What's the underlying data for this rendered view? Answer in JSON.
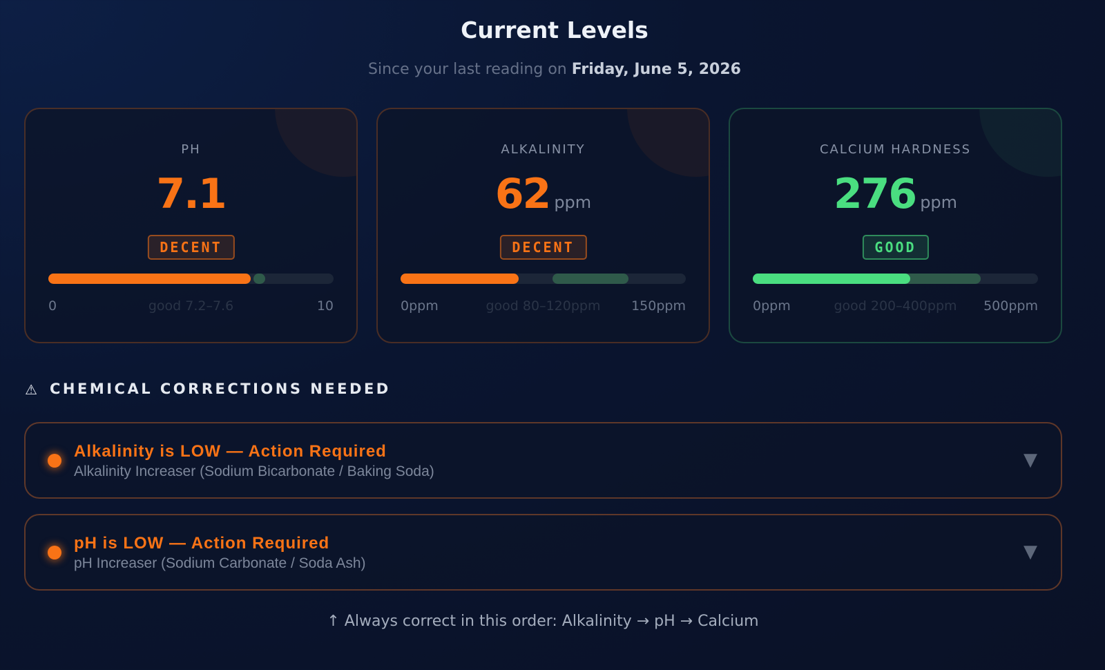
{
  "header": {
    "title": "Current Levels",
    "subtitle_prefix": "Since your last reading on",
    "subtitle_date": "Friday, June 5, 2026"
  },
  "cards": [
    {
      "label": "PH",
      "value": 7.1,
      "status": "DECENT",
      "color": "#f97316",
      "good_color": "#2f5a4a",
      "scale": {
        "min": 0,
        "max": 10
      },
      "good": {
        "low": 7.2,
        "high": 7.6,
        "label": "good 7.2–7.6"
      }
    },
    {
      "label": "ALKALINITY",
      "value": 62,
      "unit": "ppm",
      "status": "DECENT",
      "color": "#f97316",
      "good_color": "#2f5a4a",
      "scale": {
        "min": {
          "value": 0,
          "label": "0ppm"
        },
        "max": {
          "value": 150,
          "label": "150ppm"
        }
      },
      "good": {
        "low": 80,
        "high": 120,
        "label": "good 80–120ppm"
      }
    },
    {
      "label": "CALCIUM HARDNESS",
      "value": 276,
      "unit": "ppm",
      "status": "GOOD",
      "color": "#4ade80",
      "good_color": "#2f5a4a",
      "scale": {
        "min": {
          "value": 0,
          "label": "0ppm"
        },
        "max": {
          "value": 500,
          "label": "500ppm"
        }
      },
      "good": {
        "low": 200,
        "high": 400,
        "label": "good 200–400ppm"
      }
    }
  ],
  "corrections": {
    "heading": "CHEMICAL CORRECTIONS NEEDED",
    "items": [
      {
        "title": "Alkalinity is LOW — Action Required",
        "product": "Alkalinity Increaser (Sodium Bicarbonate / Baking Soda)"
      },
      {
        "title": "pH is LOW — Action Required",
        "product": "pH Increaser (Sodium Carbonate / Soda Ash)"
      }
    ]
  },
  "footer": "↑ Always correct in this order: Alkalinity → pH → Calcium"
}
